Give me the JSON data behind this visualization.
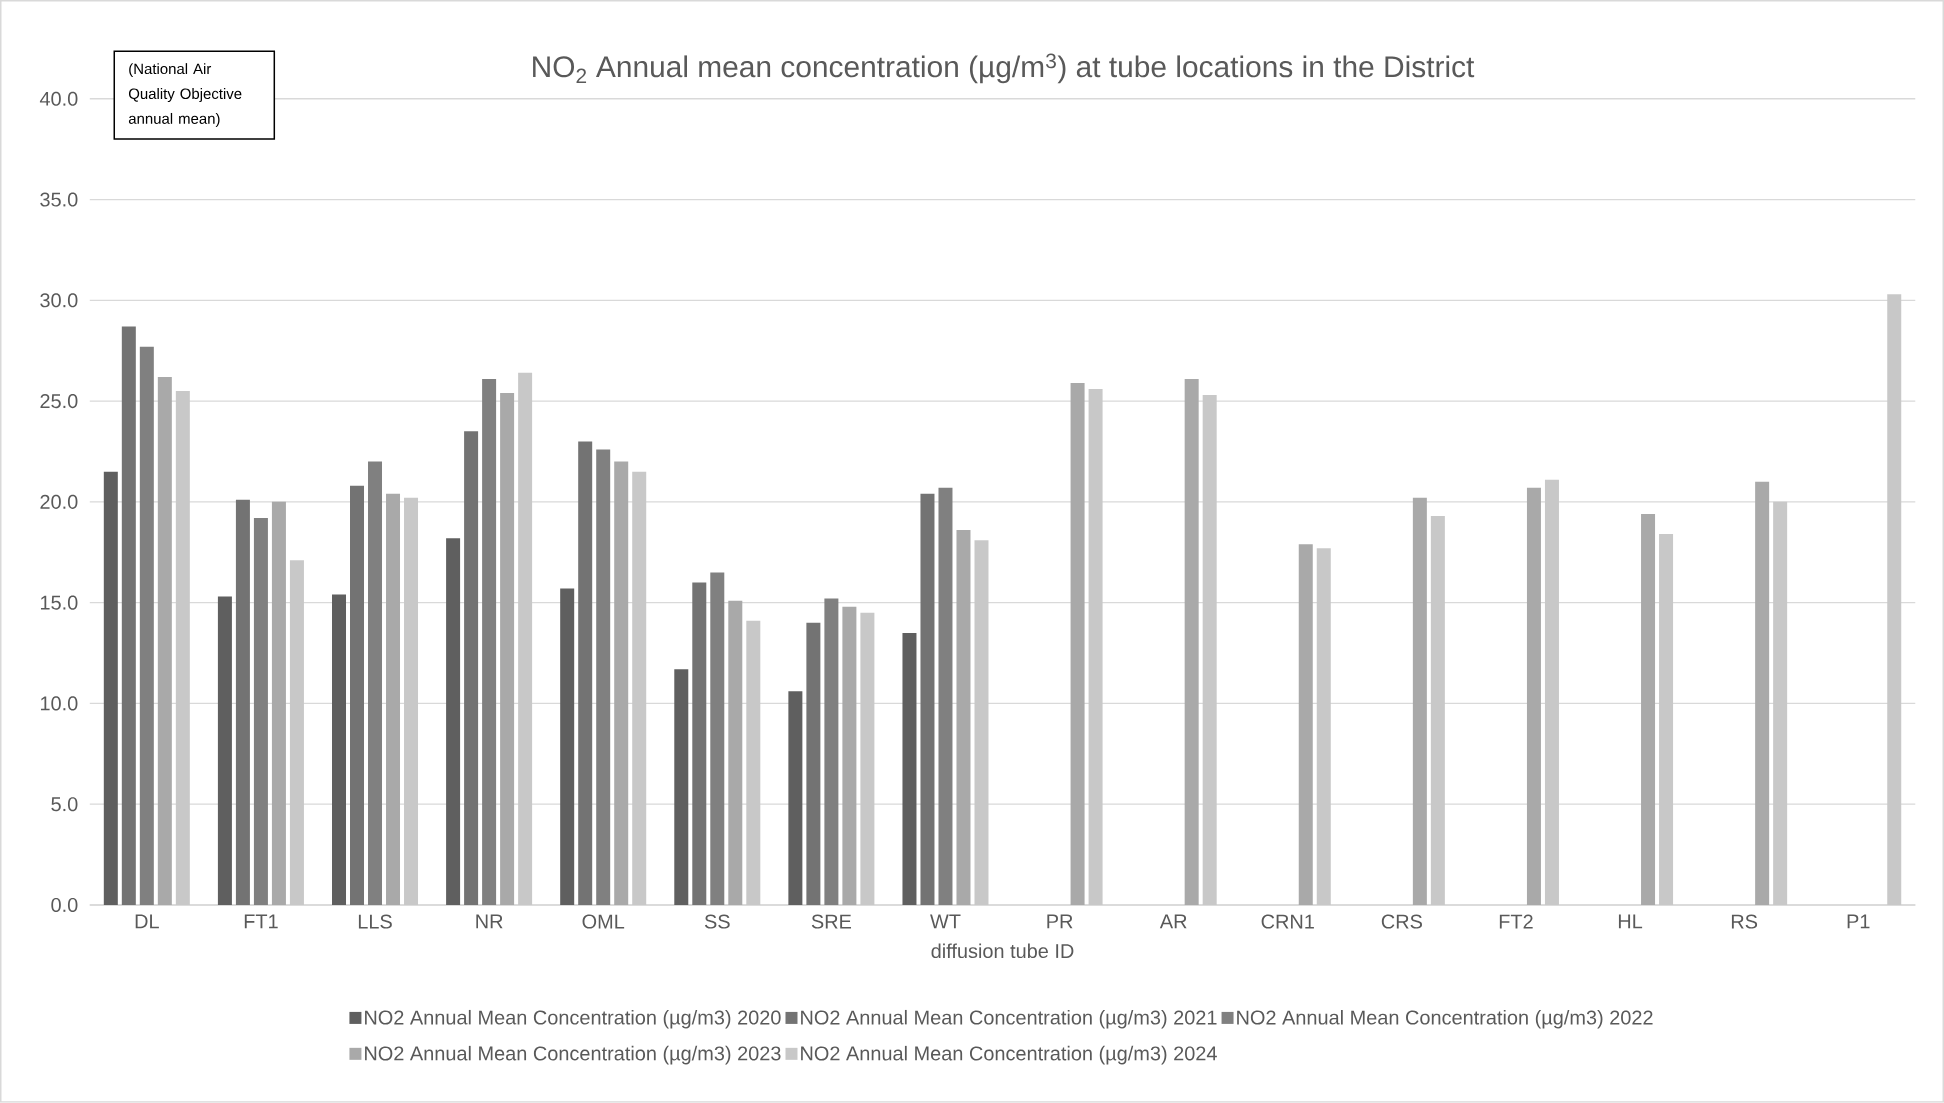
{
  "chart_data": {
    "type": "bar",
    "title": "NO$_{2}$ Annual mean concentration (µg/m$^{3}$) at tube locations in the District",
    "xlabel": "diffusion tube ID",
    "annotations": [
      "(National Air Quality Objective annual mean)"
    ],
    "categories": [
      "DL",
      "FT1",
      "LLS",
      "NR",
      "OML",
      "SS",
      "SRE",
      "WT",
      "PR",
      "AR",
      "CRN1",
      "CRS",
      "FT2",
      "HL",
      "RS",
      "P1"
    ],
    "series": [
      {
        "name": "NO2 Annual Mean Concentration (µg/m3) 2020",
        "color": "#5f5f5f",
        "values": [
          21.5,
          15.3,
          15.4,
          18.2,
          15.7,
          11.7,
          10.6,
          13.5,
          null,
          null,
          null,
          null,
          null,
          null,
          null,
          null
        ]
      },
      {
        "name": "NO2 Annual Mean Concentration (µg/m3) 2021",
        "color": "#737373",
        "values": [
          28.7,
          20.1,
          20.8,
          23.5,
          23.0,
          16.0,
          14.0,
          20.4,
          null,
          null,
          null,
          null,
          null,
          null,
          null,
          null
        ]
      },
      {
        "name": "NO2 Annual Mean Concentration (µg/m3) 2022",
        "color": "#808080",
        "values": [
          27.7,
          19.2,
          22.0,
          26.1,
          22.6,
          16.5,
          15.2,
          20.7,
          null,
          null,
          null,
          null,
          null,
          null,
          null,
          null
        ]
      },
      {
        "name": "NO2 Annual Mean Concentration (µg/m3) 2023",
        "color": "#a9a9a9",
        "values": [
          26.2,
          20.0,
          20.4,
          25.4,
          22.0,
          15.1,
          14.8,
          18.6,
          25.9,
          26.1,
          17.9,
          20.2,
          20.7,
          19.4,
          21.0,
          null
        ]
      },
      {
        "name": "NO2 Annual Mean Concentration (µg/m3) 2024",
        "color": "#c8c8c8",
        "values": [
          25.5,
          17.1,
          20.2,
          26.4,
          21.5,
          14.1,
          14.5,
          18.1,
          25.6,
          25.3,
          17.7,
          19.3,
          21.1,
          18.4,
          20.0,
          30.3
        ]
      }
    ],
    "ylim": [
      0,
      40
    ],
    "yticks": [
      {
        "value": 0,
        "label": "0.0"
      },
      {
        "value": 5,
        "label": "5.0"
      },
      {
        "value": 10,
        "label": "10.0"
      },
      {
        "value": 15,
        "label": "15.0"
      },
      {
        "value": 20,
        "label": "20.0"
      },
      {
        "value": 25,
        "label": "25.0"
      },
      {
        "value": 30,
        "label": "30.0"
      },
      {
        "value": 35,
        "label": "35.0"
      },
      {
        "value": 40,
        "label": "40.0"
      }
    ],
    "grid": "y",
    "legend": "bottom"
  }
}
